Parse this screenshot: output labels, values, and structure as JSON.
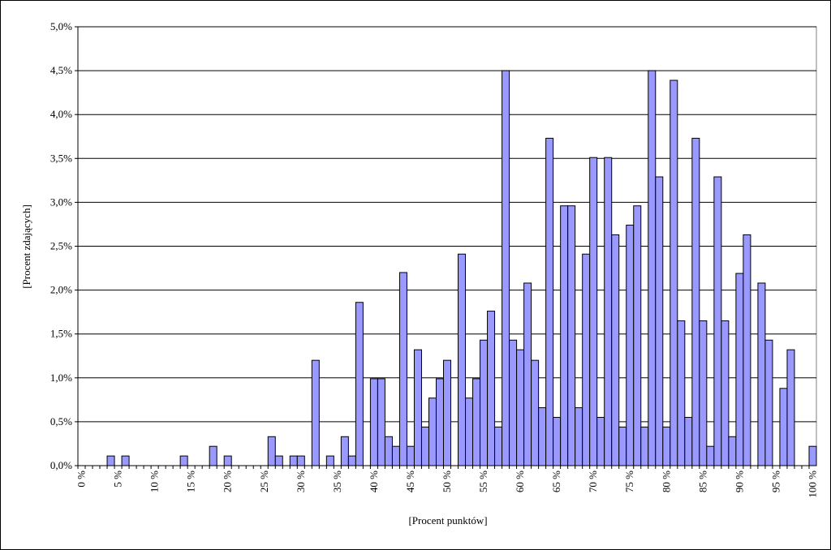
{
  "chart_data": {
    "type": "bar",
    "x_label": "[Procent punktów]",
    "y_label": "[Procent zdających]",
    "categories": [
      "0 %",
      null,
      null,
      null,
      null,
      "5 %",
      null,
      null,
      null,
      null,
      "10 %",
      null,
      null,
      null,
      null,
      "15 %",
      null,
      null,
      null,
      null,
      "20 %",
      null,
      null,
      null,
      null,
      "25 %",
      null,
      null,
      null,
      null,
      "30 %",
      null,
      null,
      null,
      null,
      "35 %",
      null,
      null,
      null,
      null,
      "40 %",
      null,
      null,
      null,
      null,
      "45 %",
      null,
      null,
      null,
      null,
      "50 %",
      null,
      null,
      null,
      null,
      "55 %",
      null,
      null,
      null,
      null,
      "60 %",
      null,
      null,
      null,
      null,
      "65 %",
      null,
      null,
      null,
      null,
      "70 %",
      null,
      null,
      null,
      null,
      "75 %",
      null,
      null,
      null,
      null,
      "80 %",
      null,
      null,
      null,
      null,
      "85 %",
      null,
      null,
      null,
      null,
      "90 %",
      null,
      null,
      null,
      null,
      "95 %",
      null,
      null,
      null,
      null,
      "100 %"
    ],
    "values": [
      0,
      0,
      0,
      0,
      0.11,
      0,
      0.11,
      0,
      0,
      0,
      0,
      0,
      0,
      0,
      0.11,
      0,
      0,
      0,
      0.22,
      0,
      0.11,
      0,
      0,
      0,
      0,
      0,
      0.33,
      0.11,
      0,
      0.11,
      0.11,
      0,
      1.2,
      0,
      0.11,
      0,
      0.33,
      0.11,
      1.86,
      0,
      0.99,
      0.99,
      0.33,
      0.22,
      2.2,
      0.22,
      1.32,
      0.44,
      0.77,
      0.99,
      1.2,
      0,
      2.41,
      0.77,
      0.99,
      1.43,
      1.76,
      0.44,
      4.5,
      1.43,
      1.32,
      2.08,
      1.2,
      0.66,
      3.73,
      0.55,
      2.96,
      2.96,
      0.66,
      2.41,
      3.51,
      0.55,
      3.51,
      2.63,
      0.44,
      2.74,
      2.96,
      0.44,
      4.5,
      3.29,
      0.44,
      4.39,
      1.65,
      0.55,
      3.73,
      1.65,
      0.22,
      3.29,
      1.65,
      0.33,
      2.19,
      2.63,
      0,
      2.08,
      1.43,
      0,
      0.88,
      1.32,
      0,
      0,
      0.22
    ],
    "color": "#9999ff",
    "ylim": [
      0,
      5
    ],
    "yticks": [
      {
        "value": 0,
        "label": "0,0%"
      },
      {
        "value": 0.5,
        "label": "0,5%"
      },
      {
        "value": 1,
        "label": "1,0%"
      },
      {
        "value": 1.5,
        "label": "1,5%"
      },
      {
        "value": 2,
        "label": "2,0%"
      },
      {
        "value": 2.5,
        "label": "2,5%"
      },
      {
        "value": 3,
        "label": "3,0%"
      },
      {
        "value": 3.5,
        "label": "3,5%"
      },
      {
        "value": 4,
        "label": "4,0%"
      },
      {
        "value": 4.5,
        "label": "4,5%"
      },
      {
        "value": 5,
        "label": "5,0%"
      }
    ],
    "grid": true
  }
}
